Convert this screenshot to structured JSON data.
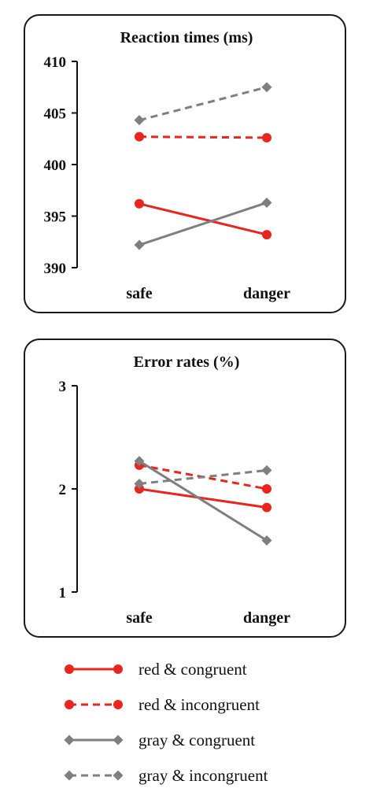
{
  "chart_data": [
    {
      "type": "line",
      "title": "Reaction times (ms)",
      "categories": [
        "safe",
        "danger"
      ],
      "ylim": [
        390,
        410
      ],
      "yticks": [
        "390",
        "395",
        "400",
        "405",
        "410"
      ],
      "series": [
        {
          "name": "red & congruent",
          "values": [
            396.2,
            393.2
          ],
          "color": "#e8251f",
          "dash": false,
          "marker": "circle"
        },
        {
          "name": "red & incongruent",
          "values": [
            402.7,
            402.6
          ],
          "color": "#e8251f",
          "dash": true,
          "marker": "circle"
        },
        {
          "name": "gray & congruent",
          "values": [
            392.2,
            396.3
          ],
          "color": "#7f7f7f",
          "dash": false,
          "marker": "diamond"
        },
        {
          "name": "gray & incongruent",
          "values": [
            404.3,
            407.5
          ],
          "color": "#7f7f7f",
          "dash": true,
          "marker": "diamond"
        }
      ]
    },
    {
      "type": "line",
      "title": "Error rates (%)",
      "categories": [
        "safe",
        "danger"
      ],
      "ylim": [
        1,
        3
      ],
      "yticks": [
        "1",
        "2",
        "3"
      ],
      "series": [
        {
          "name": "red & congruent",
          "values": [
            2.0,
            1.82
          ],
          "color": "#e8251f",
          "dash": false,
          "marker": "circle"
        },
        {
          "name": "red & incongruent",
          "values": [
            2.23,
            2.0
          ],
          "color": "#e8251f",
          "dash": true,
          "marker": "circle"
        },
        {
          "name": "gray & congruent",
          "values": [
            2.27,
            1.5
          ],
          "color": "#7f7f7f",
          "dash": false,
          "marker": "diamond"
        },
        {
          "name": "gray & incongruent",
          "values": [
            2.05,
            2.18
          ],
          "color": "#7f7f7f",
          "dash": true,
          "marker": "diamond"
        }
      ]
    }
  ],
  "legend": [
    {
      "label": "red & congruent",
      "color": "#e8251f",
      "dash": false,
      "marker": "circle"
    },
    {
      "label": "red & incongruent",
      "color": "#e8251f",
      "dash": true,
      "marker": "circle"
    },
    {
      "label": "gray & congruent",
      "color": "#7f7f7f",
      "dash": false,
      "marker": "diamond"
    },
    {
      "label": "gray & incongruent",
      "color": "#7f7f7f",
      "dash": true,
      "marker": "diamond"
    }
  ]
}
